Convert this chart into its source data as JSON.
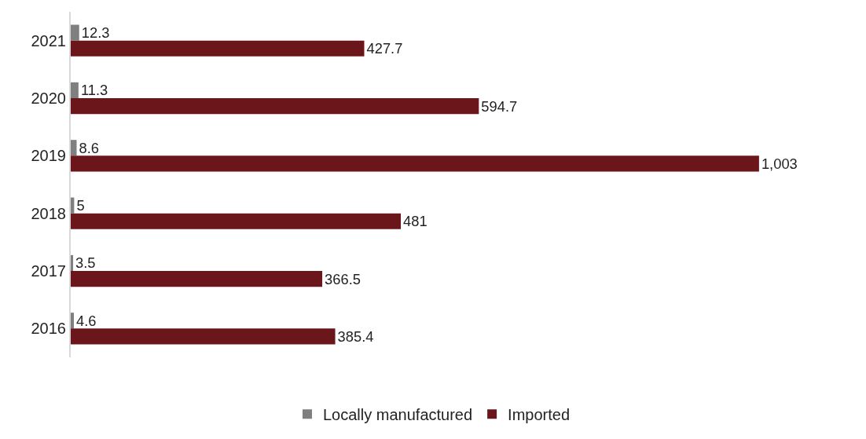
{
  "chart_data": {
    "type": "bar",
    "orientation": "horizontal",
    "categories": [
      "2021",
      "2020",
      "2019",
      "2018",
      "2017",
      "2016"
    ],
    "series": [
      {
        "name": "Locally manufactured",
        "color": "#7f7f7f",
        "values": [
          12.3,
          11.3,
          8.6,
          5,
          3.5,
          4.6
        ],
        "value_labels": [
          "12.3",
          "11.3",
          "8.6",
          "5",
          "3.5",
          "4.6"
        ]
      },
      {
        "name": "Imported",
        "color": "#6b161b",
        "values": [
          427.7,
          594.7,
          1003,
          481,
          366.5,
          385.4
        ],
        "value_labels": [
          "427.7",
          "594.7",
          "1,003",
          "481",
          "366.5",
          "385.4"
        ]
      }
    ],
    "legend": "bottom"
  }
}
